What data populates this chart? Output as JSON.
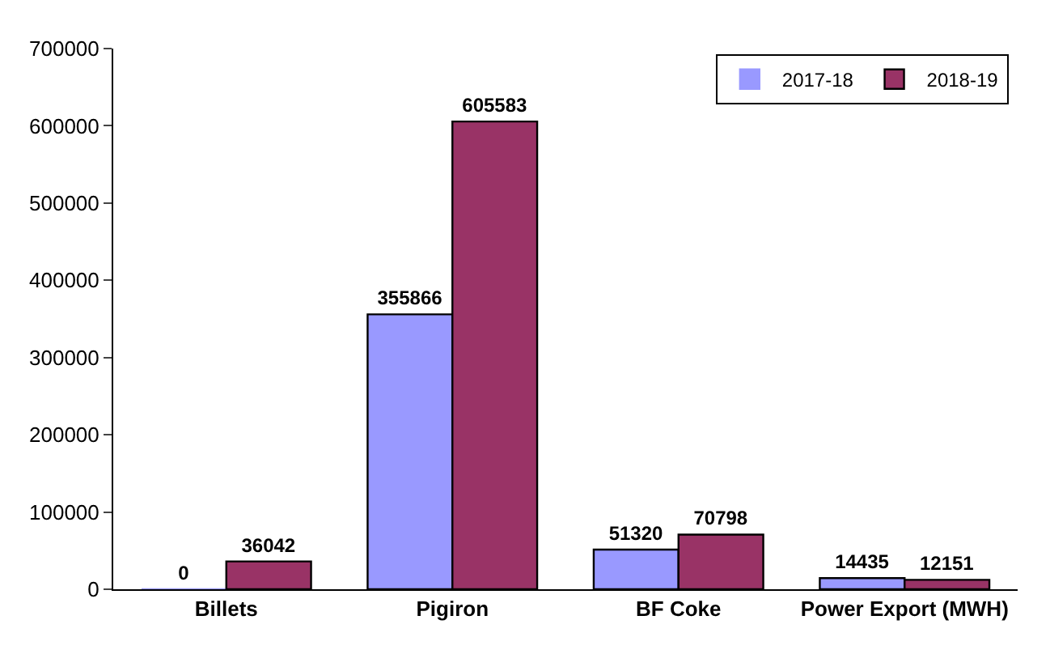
{
  "chart_data": {
    "type": "bar",
    "categories": [
      "Billets",
      "Pigiron",
      "BF Coke",
      "Power Export (MWH)"
    ],
    "series": [
      {
        "name": "2017-18",
        "color": "#9999ff",
        "values": [
          0,
          355866,
          51320,
          14435
        ]
      },
      {
        "name": "2018-19",
        "color": "#993366",
        "values": [
          36042,
          605583,
          70798,
          12151
        ]
      }
    ],
    "ylim": [
      0,
      700000
    ],
    "yticks": [
      0,
      100000,
      200000,
      300000,
      400000,
      500000,
      600000,
      700000
    ],
    "data_labels": true,
    "legend": "top right"
  }
}
